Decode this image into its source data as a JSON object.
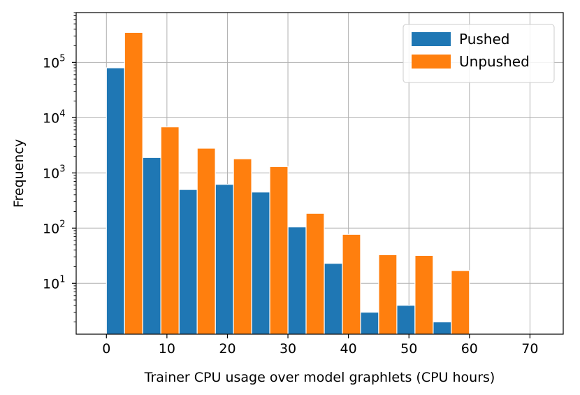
{
  "chart_data": {
    "type": "bar",
    "xlabel": "Trainer CPU usage over model graphlets (CPU hours)",
    "ylabel": "Frequency",
    "yscale": "log",
    "xlim": [
      -5,
      75.5
    ],
    "ylim": [
      1.2,
      800000
    ],
    "xticks": [
      0,
      10,
      20,
      30,
      40,
      50,
      60,
      70
    ],
    "yticks": [
      {
        "value": 10,
        "base": "10",
        "exp": "1"
      },
      {
        "value": 100,
        "base": "10",
        "exp": "2"
      },
      {
        "value": 1000,
        "base": "10",
        "exp": "3"
      },
      {
        "value": 10000,
        "base": "10",
        "exp": "4"
      },
      {
        "value": 100000,
        "base": "10",
        "exp": "5"
      }
    ],
    "grid": true,
    "legend_position": "top-right",
    "bin_edges": [
      0,
      6,
      12,
      18,
      24,
      30,
      36,
      42,
      48,
      54,
      60,
      66,
      72
    ],
    "series": [
      {
        "name": "Pushed",
        "color": "#1f77b4",
        "values": [
          80000,
          1900,
          500,
          620,
          450,
          105,
          23,
          3,
          4,
          2,
          null,
          null
        ]
      },
      {
        "name": "Unpushed",
        "color": "#ff7f0e",
        "values": [
          350000,
          6800,
          2800,
          1800,
          1300,
          185,
          77,
          33,
          32,
          17,
          null,
          null
        ]
      }
    ]
  }
}
